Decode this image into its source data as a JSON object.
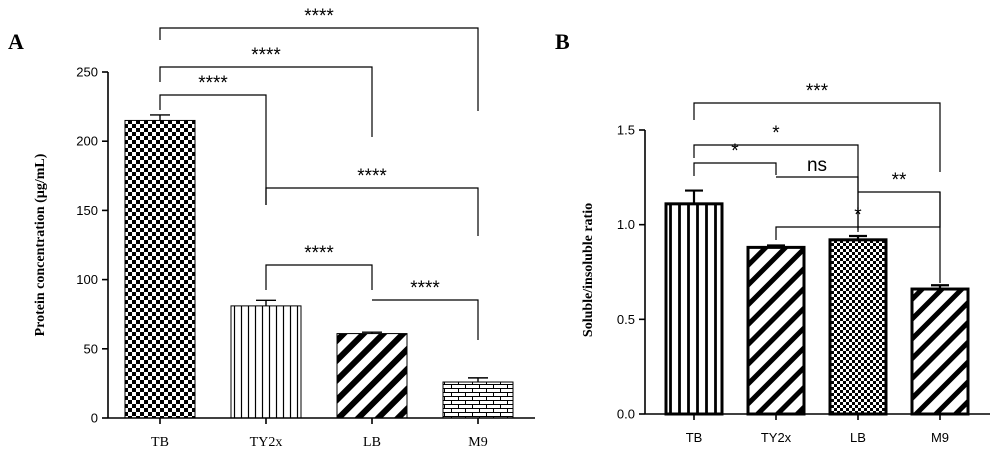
{
  "chart_data": [
    {
      "panel": "A",
      "type": "bar",
      "ylabel": "Protein concentration (µg/mL)",
      "categories": [
        "TB",
        "TY2x",
        "LB",
        "M9"
      ],
      "values": [
        215,
        81,
        61,
        26
      ],
      "errors": [
        4,
        4,
        1,
        3
      ],
      "patterns": [
        "checker",
        "vertical-lines",
        "diagonal-lines",
        "brick"
      ],
      "ylim": [
        0,
        250
      ],
      "yticks": [
        0,
        50,
        100,
        150,
        200,
        250
      ],
      "ytick_labels": [
        "0",
        "50",
        "100",
        "150",
        "200",
        "250"
      ],
      "comparisons": [
        {
          "from": "TB",
          "to": "TY2x",
          "label": "****"
        },
        {
          "from": "TB",
          "to": "LB",
          "label": "****"
        },
        {
          "from": "TB",
          "to": "M9",
          "label": "****"
        },
        {
          "from": "TY2x",
          "to": "M9",
          "label": "****"
        },
        {
          "from": "TY2x",
          "to": "LB",
          "label": "****"
        },
        {
          "from": "LB",
          "to": "M9",
          "label": "****"
        }
      ]
    },
    {
      "panel": "B",
      "type": "bar",
      "ylabel": "Soluble/insoluble ratio",
      "categories": [
        "TB",
        "TY2x",
        "LB",
        "M9"
      ],
      "values": [
        1.11,
        0.88,
        0.92,
        0.66
      ],
      "errors": [
        0.07,
        0.01,
        0.02,
        0.02
      ],
      "patterns": [
        "vertical-lines",
        "diagonal-lines",
        "checker",
        "diagonal-lines"
      ],
      "ylim": [
        0,
        1.5
      ],
      "yticks": [
        0,
        0.5,
        1.0,
        1.5
      ],
      "ytick_labels": [
        "0.0",
        "0.5",
        "1.0",
        "1.5"
      ],
      "comparisons": [
        {
          "from": "TB",
          "to": "TY2x",
          "label": "*"
        },
        {
          "from": "TB",
          "to": "LB",
          "label": "*"
        },
        {
          "from": "TB",
          "to": "M9",
          "label": "***"
        },
        {
          "from": "TY2x",
          "to": "LB",
          "label": "ns"
        },
        {
          "from": "TY2x",
          "to": "M9",
          "label": "*"
        },
        {
          "from": "LB",
          "to": "M9",
          "label": "**"
        }
      ]
    }
  ]
}
